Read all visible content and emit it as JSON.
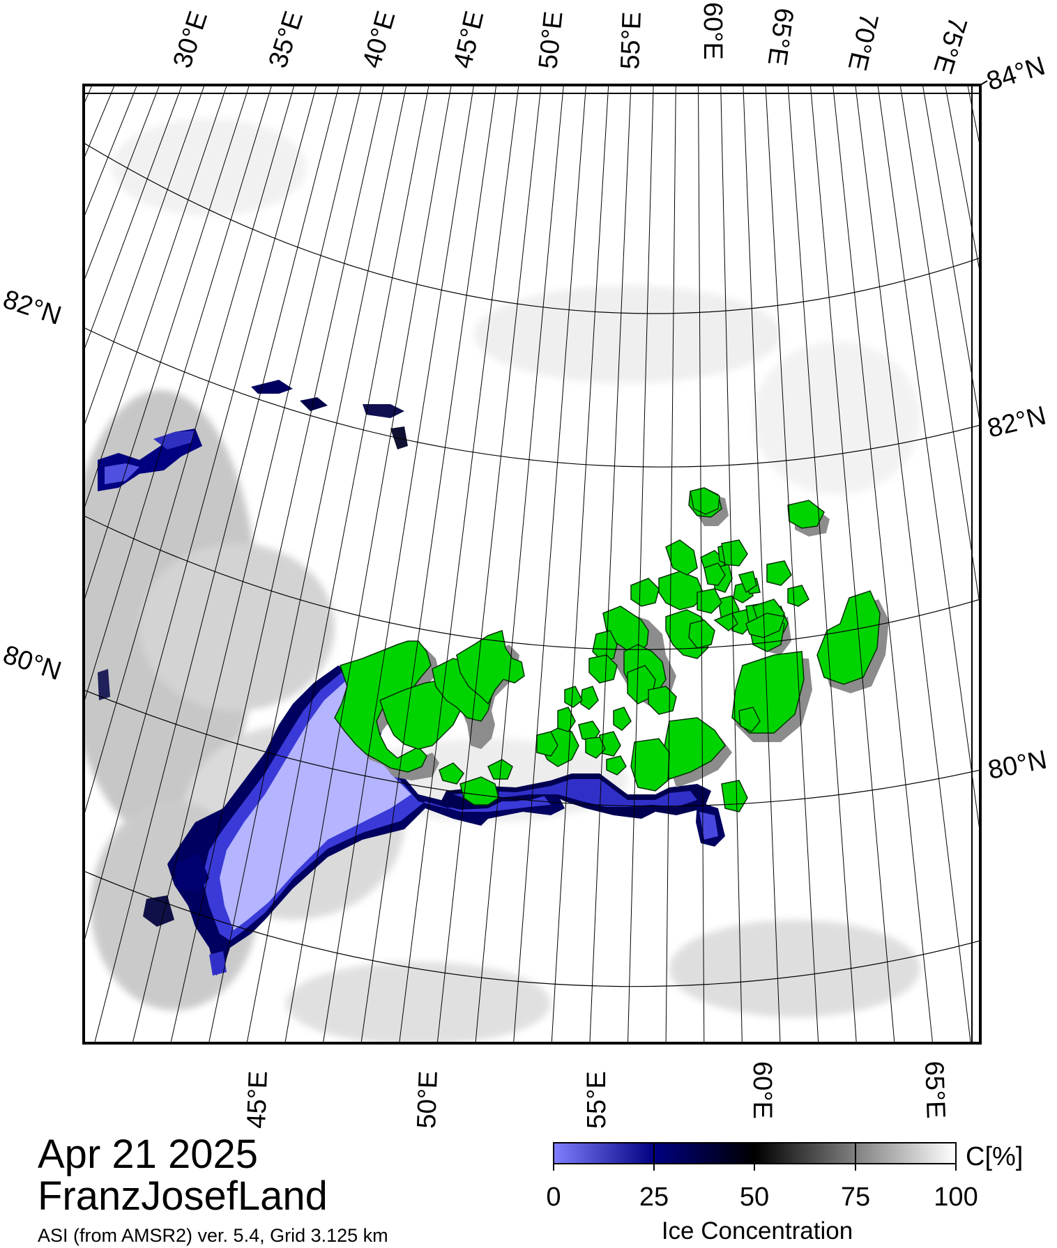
{
  "title": {
    "date": "Apr 21 2025",
    "region": "FranzJosefLand",
    "source": "ASI (from AMSR2) ver. 5.4,  Grid 3.125 km"
  },
  "map": {
    "top_lon_labels": [
      "30°E",
      "35°E",
      "40°E",
      "45°E",
      "50°E",
      "55°E",
      "60°E",
      "65°E",
      "70°E",
      "75°E"
    ],
    "bottom_lon_labels": [
      "45°E",
      "50°E",
      "55°E",
      "60°E",
      "65°E"
    ],
    "left_lat_labels": [
      "82°N",
      "80°N"
    ],
    "right_lat_labels": [
      "84°N",
      "82°N",
      "80°N"
    ],
    "colors": {
      "land": "#00d400",
      "land_shadow": "#8c8c8c",
      "open_water_low": "#b4b4ff",
      "open_water_mid": "#4040e0",
      "dark_band": "#000060",
      "ice_high": "#ffffff",
      "grid": "#000000"
    }
  },
  "colorbar": {
    "title": "Ice Concentration",
    "unit": "C[%]",
    "ticks": [
      "0",
      "25",
      "50",
      "75",
      "100"
    ],
    "colors": [
      "#8080ff",
      "#000080",
      "#000000",
      "#808080",
      "#ffffff"
    ]
  }
}
